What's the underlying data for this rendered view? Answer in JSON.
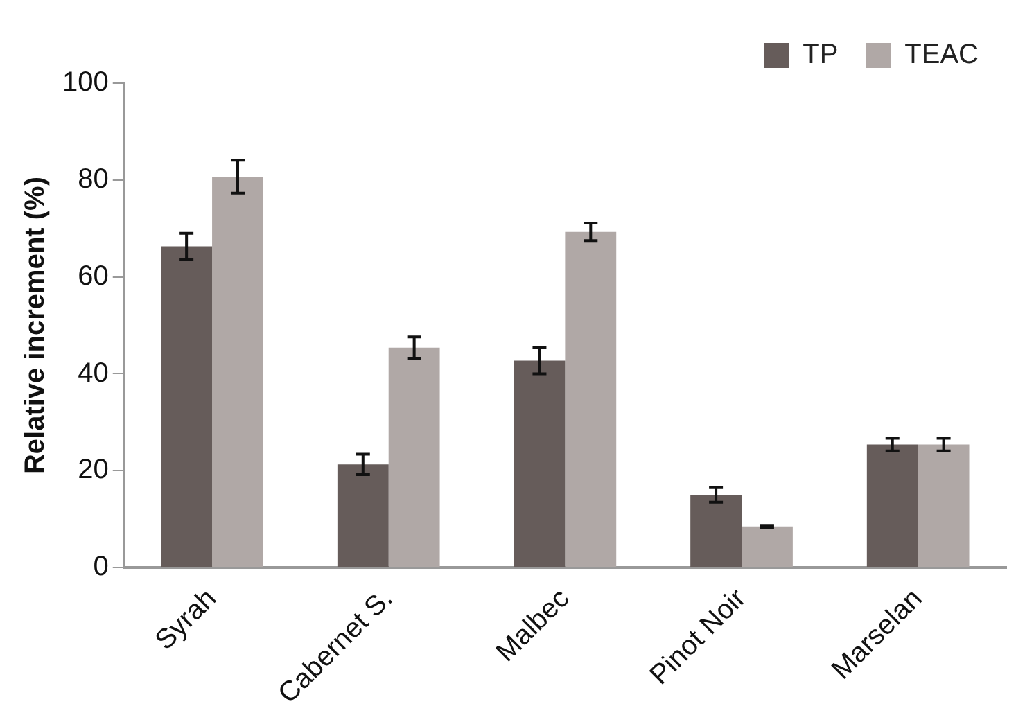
{
  "chart_data": {
    "type": "bar",
    "ylabel": "Relative increment (%)",
    "categories": [
      "Syrah",
      "Cabernet S.",
      "Malbec",
      "Pinot Noir",
      "Marselan"
    ],
    "series": [
      {
        "name": "TP",
        "color": "#665c5a",
        "values": [
          66.3,
          21.3,
          42.7,
          15,
          25.4
        ],
        "errors": [
          2.7,
          2.1,
          2.7,
          1.5,
          1.3
        ]
      },
      {
        "name": "TEAC",
        "color": "#b0a8a6",
        "values": [
          80.7,
          45.4,
          69.3,
          8.5,
          25.4
        ],
        "errors": [
          3.4,
          2.2,
          1.8,
          0.2,
          1.3
        ]
      }
    ],
    "ylim": [
      0,
      100
    ],
    "yticks": [
      0,
      20,
      40,
      60,
      80,
      100
    ],
    "grid": false,
    "legend": "top right"
  }
}
